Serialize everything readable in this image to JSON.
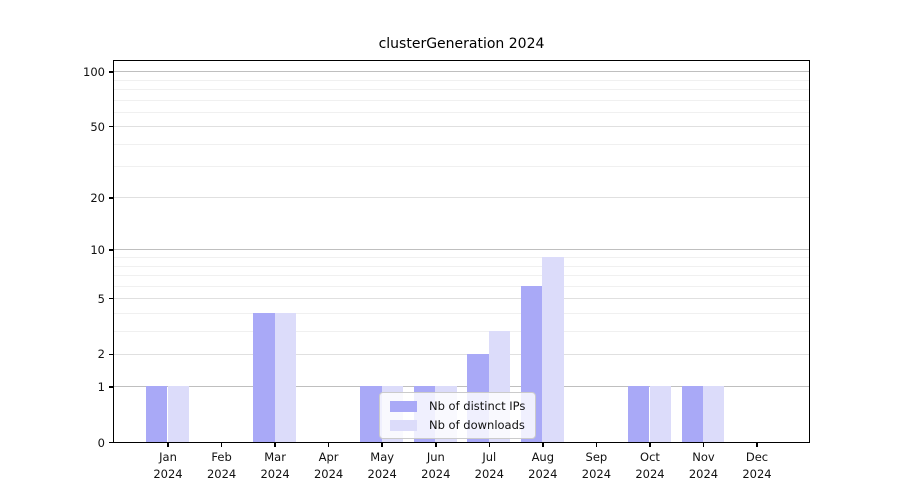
{
  "title": "clusterGeneration 2024",
  "colors": {
    "background": "#ffffff",
    "axis": "#000000",
    "text": "#111111",
    "grid_strong": "rgba(0,0,0,0.25)",
    "grid_labeled": "rgba(0,0,0,0.12)",
    "grid_minor": "rgba(0,0,0,0.06)",
    "series_ips": "#a9a9f7",
    "series_downloads": "#dcdcfa"
  },
  "chart_data": {
    "type": "bar",
    "title": "clusterGeneration 2024",
    "categories": [
      {
        "month": "Jan",
        "year": "2024"
      },
      {
        "month": "Feb",
        "year": "2024"
      },
      {
        "month": "Mar",
        "year": "2024"
      },
      {
        "month": "Apr",
        "year": "2024"
      },
      {
        "month": "May",
        "year": "2024"
      },
      {
        "month": "Jun",
        "year": "2024"
      },
      {
        "month": "Jul",
        "year": "2024"
      },
      {
        "month": "Aug",
        "year": "2024"
      },
      {
        "month": "Sep",
        "year": "2024"
      },
      {
        "month": "Oct",
        "year": "2024"
      },
      {
        "month": "Nov",
        "year": "2024"
      },
      {
        "month": "Dec",
        "year": "2024"
      }
    ],
    "series": [
      {
        "name": "Nb of distinct IPs",
        "color": "#a9a9f7",
        "values": [
          1,
          0,
          4,
          0,
          1,
          1,
          2,
          6,
          0,
          1,
          1,
          0
        ]
      },
      {
        "name": "Nb of downloads",
        "color": "#dcdcfa",
        "values": [
          1,
          0,
          4,
          0,
          1,
          1,
          3,
          9,
          0,
          1,
          1,
          0
        ]
      }
    ],
    "y_axis": {
      "scale": "log10(1+x)",
      "ticks": [
        0,
        1,
        2,
        5,
        10,
        20,
        50,
        100
      ],
      "strong_gridlines": [
        1,
        10,
        100
      ],
      "minor_gridlines": [
        3,
        4,
        6,
        7,
        8,
        9,
        30,
        40,
        60,
        70,
        80,
        90
      ],
      "range": [
        0,
        113
      ]
    },
    "xlabel": "",
    "ylabel": "",
    "grid": true,
    "legend_position": "lower-center"
  }
}
